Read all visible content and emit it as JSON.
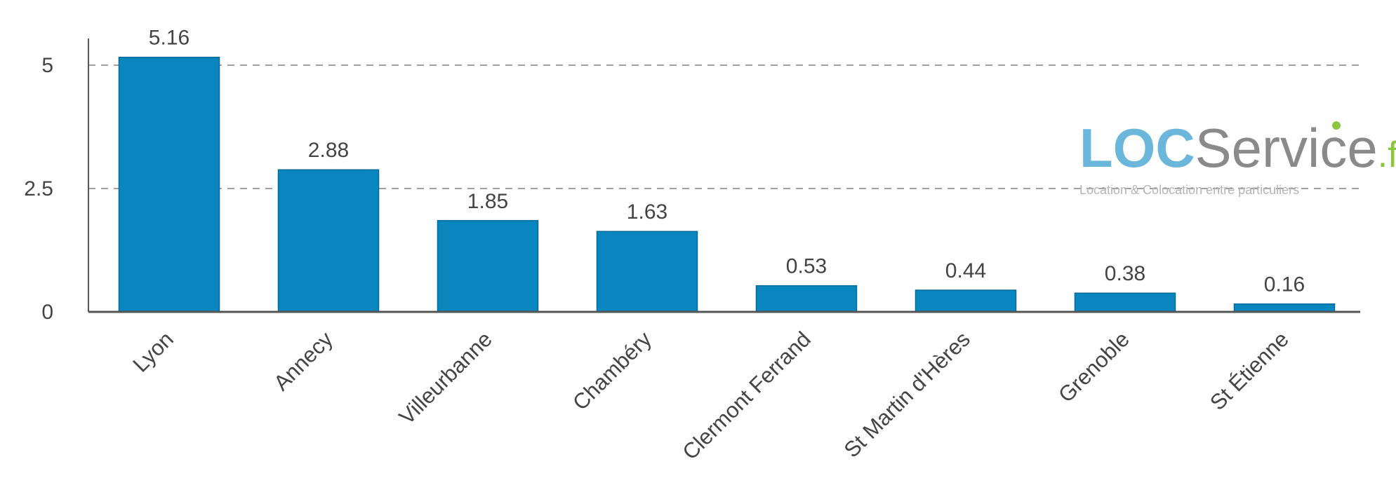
{
  "chart_data": {
    "type": "bar",
    "categories": [
      "Lyon",
      "Annecy",
      "Villeurbanne",
      "Chambéry",
      "Clermont Ferrand",
      "St Martin d'Hères",
      "Grenoble",
      "St Étienne"
    ],
    "values": [
      5.16,
      2.88,
      1.85,
      1.63,
      0.53,
      0.44,
      0.38,
      0.16
    ],
    "value_labels": [
      "5.16",
      "2.88",
      "1.85",
      "1.63",
      "0.53",
      "0.44",
      "0.38",
      "0.16"
    ],
    "y_ticks": [
      0,
      2.5,
      5
    ],
    "y_tick_labels": [
      "0",
      "2.5",
      "5"
    ],
    "ylim": [
      0,
      5.5
    ],
    "grid": "dashed horizontal at 2.5 and 5",
    "title": "",
    "xlabel": "",
    "ylabel": "",
    "colors": {
      "bar": "#0a86bf",
      "bar_edge": "#056a99",
      "axis": "#555555",
      "grid": "#a0a0a0"
    }
  },
  "watermark": {
    "logo_part1": "LOC",
    "logo_part2": "Service",
    "logo_part3": ".fr",
    "tagline": "Location & Colocation entre particuliers",
    "colors": {
      "loc": "#6bb7db",
      "service": "#8a8a8a",
      "fr": "#8cc63f",
      "dot": "#8cc63f"
    }
  }
}
